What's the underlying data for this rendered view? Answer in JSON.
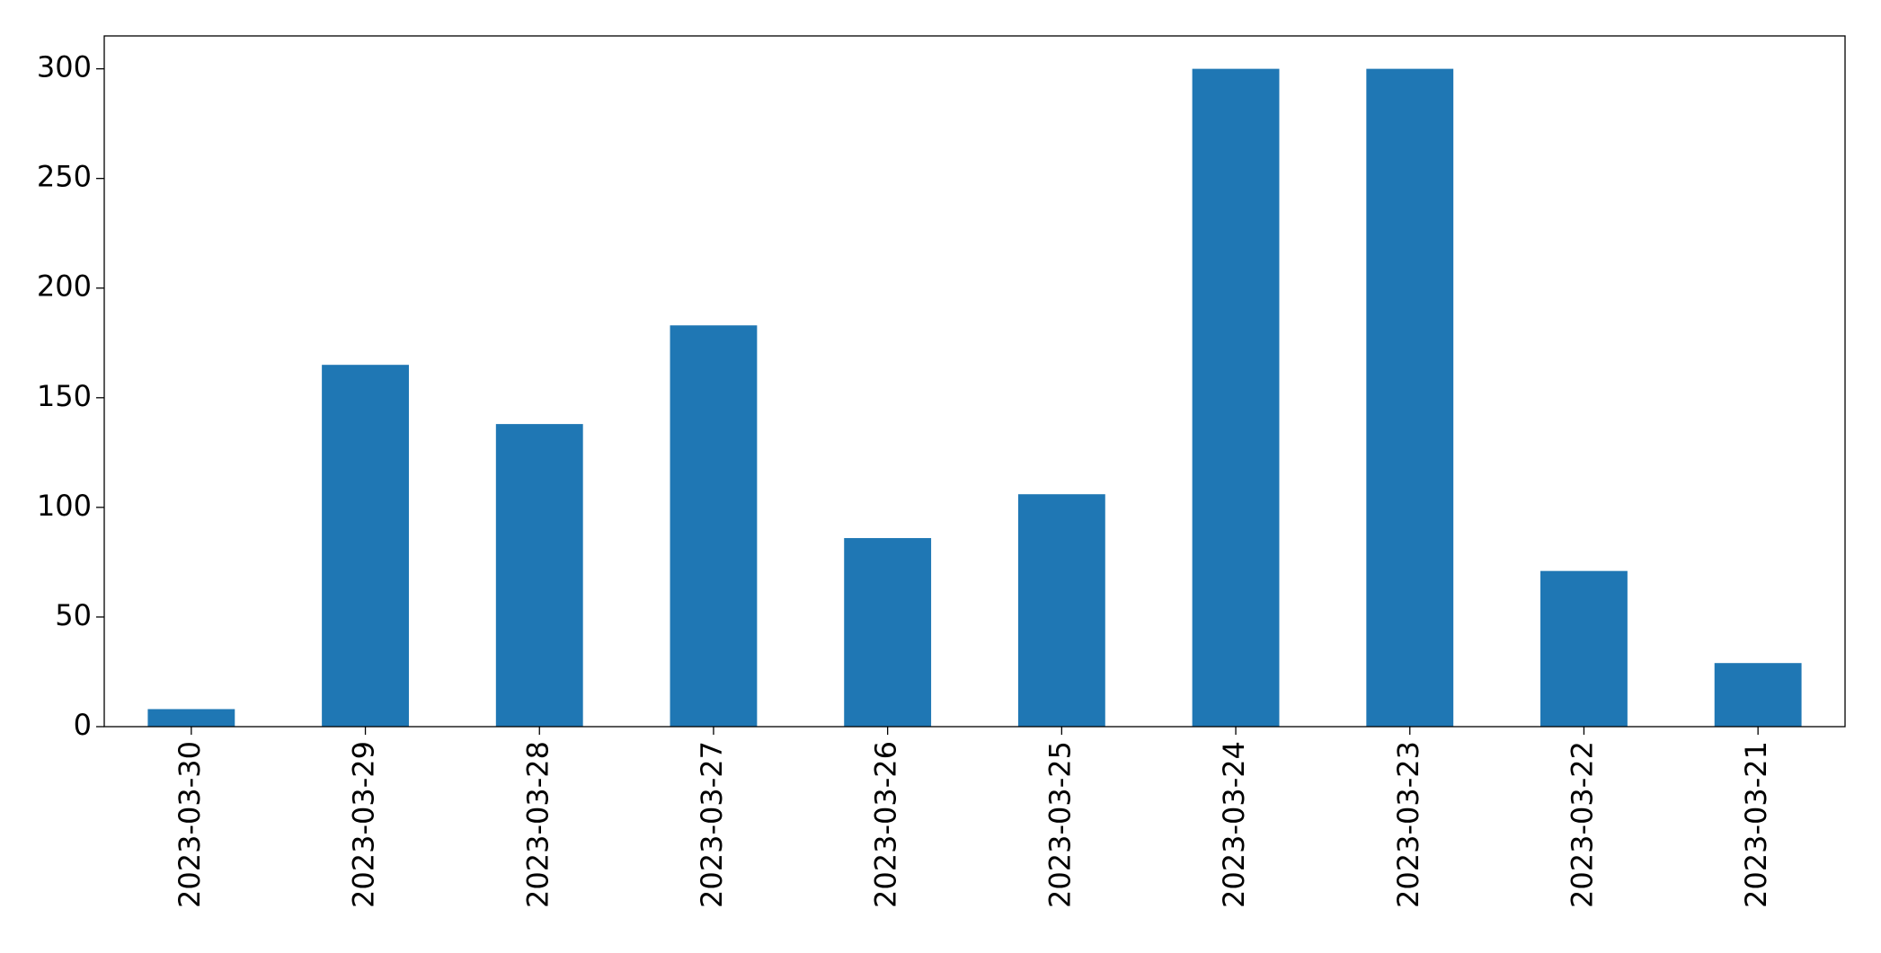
{
  "chart_data": {
    "type": "bar",
    "categories": [
      "2023-03-30",
      "2023-03-29",
      "2023-03-28",
      "2023-03-27",
      "2023-03-26",
      "2023-03-25",
      "2023-03-24",
      "2023-03-23",
      "2023-03-22",
      "2023-03-21"
    ],
    "values": [
      8,
      165,
      138,
      183,
      86,
      106,
      300,
      300,
      71,
      29
    ],
    "color": "#1f77b4",
    "ylim": [
      0,
      315
    ],
    "yticks": [
      0,
      50,
      100,
      150,
      200,
      250,
      300
    ],
    "grid": false
  }
}
